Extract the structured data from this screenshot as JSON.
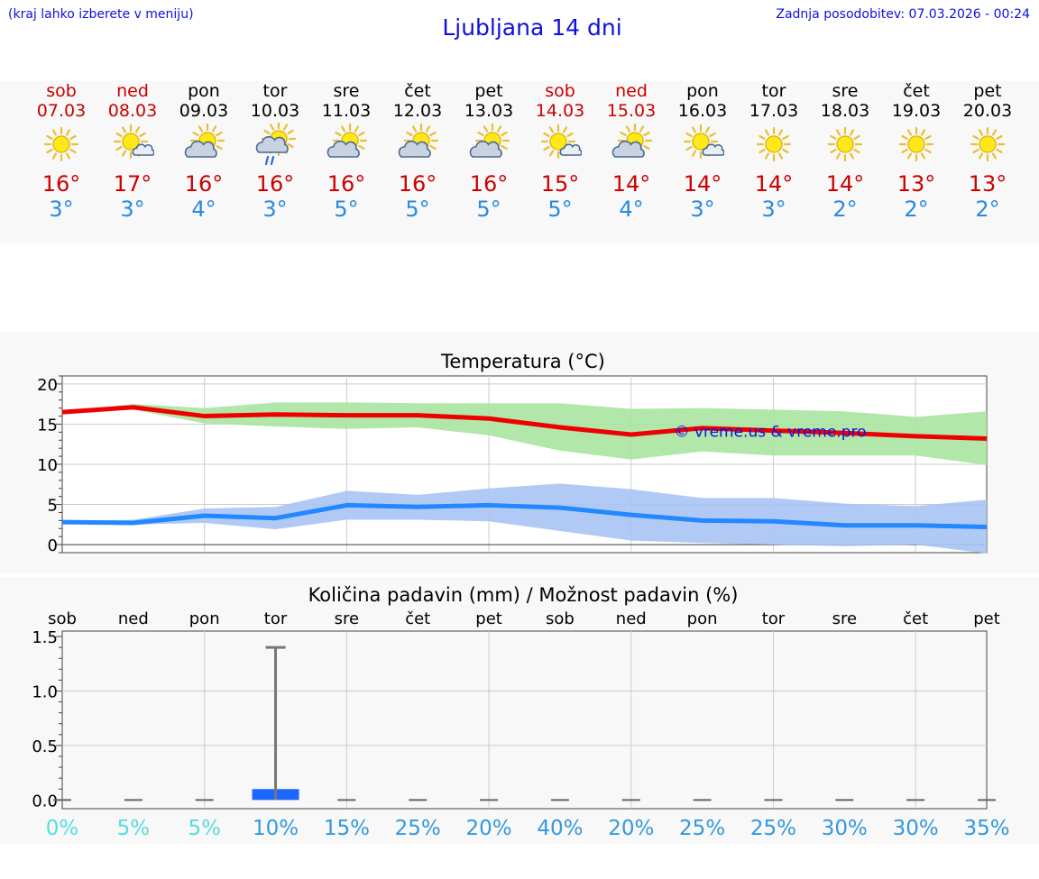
{
  "header": {
    "hint": "(kraj lahko izberete v meniju)",
    "title": "Ljubljana 14 dni",
    "update": "Zadnja posodobitev: 07.03.2026 - 00:24"
  },
  "days": [
    {
      "name": "sob",
      "date": "07.03",
      "weekend": true,
      "icon": "sun",
      "max": "16°",
      "min": "3°"
    },
    {
      "name": "ned",
      "date": "08.03",
      "weekend": true,
      "icon": "sun-small-cloud",
      "max": "17°",
      "min": "3°"
    },
    {
      "name": "pon",
      "date": "09.03",
      "weekend": false,
      "icon": "cloud-sun",
      "max": "16°",
      "min": "4°"
    },
    {
      "name": "tor",
      "date": "10.03",
      "weekend": false,
      "icon": "cloud-sun-rain",
      "max": "16°",
      "min": "3°"
    },
    {
      "name": "sre",
      "date": "11.03",
      "weekend": false,
      "icon": "cloud-sun",
      "max": "16°",
      "min": "5°"
    },
    {
      "name": "čet",
      "date": "12.03",
      "weekend": false,
      "icon": "cloud-sun",
      "max": "16°",
      "min": "5°"
    },
    {
      "name": "pet",
      "date": "13.03",
      "weekend": false,
      "icon": "cloud-sun",
      "max": "16°",
      "min": "5°"
    },
    {
      "name": "sob",
      "date": "14.03",
      "weekend": true,
      "icon": "sun-small-cloud",
      "max": "15°",
      "min": "5°"
    },
    {
      "name": "ned",
      "date": "15.03",
      "weekend": true,
      "icon": "cloud-sun",
      "max": "14°",
      "min": "4°"
    },
    {
      "name": "pon",
      "date": "16.03",
      "weekend": false,
      "icon": "sun-small-cloud",
      "max": "14°",
      "min": "3°"
    },
    {
      "name": "tor",
      "date": "17.03",
      "weekend": false,
      "icon": "sun",
      "max": "14°",
      "min": "3°"
    },
    {
      "name": "sre",
      "date": "18.03",
      "weekend": false,
      "icon": "sun",
      "max": "14°",
      "min": "2°"
    },
    {
      "name": "čet",
      "date": "19.03",
      "weekend": false,
      "icon": "sun",
      "max": "13°",
      "min": "2°"
    },
    {
      "name": "pet",
      "date": "20.03",
      "weekend": false,
      "icon": "sun",
      "max": "13°",
      "min": "2°"
    }
  ],
  "colors": {
    "weekend": "#cc0000",
    "weekday": "#000000",
    "tmax": "#cc0000",
    "tmin": "#2a8ae0",
    "max_line": "#ee0000",
    "max_band": "#a8e4a0",
    "min_line": "#2288ff",
    "min_band": "#a8c4f4",
    "bar": "#1a66ff",
    "watermark": "#1010dd"
  },
  "chart_data": [
    {
      "type": "line",
      "title": "Temperatura (°C)",
      "ylim": [
        -1,
        21
      ],
      "yticks": [
        "0",
        "5",
        "10",
        "15",
        "20"
      ],
      "grid": true,
      "watermark": "© vreme.us & vreme.pro",
      "series": [
        {
          "values": [
            16.5,
            17.1,
            16.0,
            16.2,
            16.1,
            16.1,
            15.7,
            14.6,
            13.7,
            14.5,
            14.2,
            13.9,
            13.5,
            13.2
          ],
          "band_low": [
            16.5,
            16.8,
            15.1,
            14.7,
            14.4,
            14.6,
            13.6,
            11.7,
            10.6,
            11.6,
            11.1,
            11.1,
            11.1,
            9.9
          ],
          "band_high": [
            16.6,
            17.5,
            17.0,
            17.7,
            17.7,
            17.6,
            17.6,
            17.6,
            16.9,
            17.0,
            16.8,
            16.6,
            15.9,
            16.6
          ]
        },
        {
          "values": [
            2.8,
            2.7,
            3.6,
            3.3,
            4.9,
            4.7,
            4.9,
            4.6,
            3.7,
            3.0,
            2.9,
            2.4,
            2.4,
            2.2
          ],
          "band_low": [
            2.7,
            2.5,
            2.7,
            1.9,
            3.1,
            3.1,
            2.9,
            1.7,
            0.5,
            0.2,
            0.0,
            -0.2,
            0.0,
            -1.1
          ],
          "band_high": [
            2.9,
            3.1,
            4.5,
            4.7,
            6.7,
            6.2,
            7.0,
            7.6,
            6.9,
            5.8,
            5.8,
            5.1,
            4.8,
            5.6
          ]
        }
      ]
    },
    {
      "type": "bar",
      "title": "Količina padavin (mm) / Možnost padavin (%)",
      "categories": [
        "sob",
        "ned",
        "pon",
        "tor",
        "sre",
        "čet",
        "pet",
        "sob",
        "ned",
        "pon",
        "tor",
        "sre",
        "čet",
        "pet"
      ],
      "values": [
        0,
        0,
        0,
        0.1,
        0,
        0,
        0,
        0,
        0,
        0,
        0,
        0,
        0,
        0
      ],
      "error_max": [
        0,
        0,
        0,
        1.4,
        0,
        0,
        0,
        0,
        0,
        0,
        0,
        0,
        0,
        0
      ],
      "ylim": [
        -0.08,
        1.55
      ],
      "yticks": [
        "0.0",
        "0.5",
        "1.0",
        "1.5"
      ],
      "probability": [
        "0%",
        "5%",
        "5%",
        "10%",
        "15%",
        "25%",
        "20%",
        "40%",
        "20%",
        "25%",
        "25%",
        "30%",
        "30%",
        "35%"
      ],
      "probability_colors": [
        "#55dddd",
        "#55dddd",
        "#55dddd",
        "#3399dd",
        "#3399dd",
        "#3399dd",
        "#3399dd",
        "#3399dd",
        "#3399dd",
        "#3399dd",
        "#3399dd",
        "#3399dd",
        "#3399dd",
        "#3399dd"
      ]
    }
  ]
}
